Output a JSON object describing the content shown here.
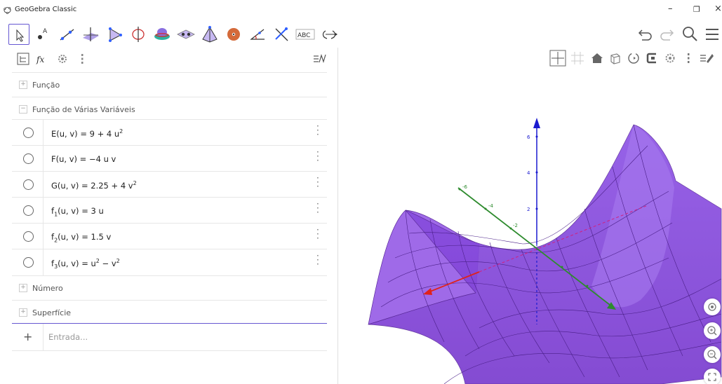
{
  "window": {
    "title": "GeoGebra Classic"
  },
  "toolbar": {
    "tools": [
      "move",
      "point",
      "line",
      "perpendicular",
      "polygon",
      "circle-axis",
      "intersect",
      "plane",
      "pyramid",
      "sphere",
      "angle",
      "reflect",
      "text",
      "rotate-view"
    ],
    "text_tool_label": "ABC"
  },
  "algebra": {
    "categories": {
      "funcao": "Função",
      "funcao_varias": "Função de Várias Variáveis",
      "numero": "Número",
      "superficie": "Superfície"
    },
    "rows": [
      {
        "name": "E",
        "args": "(u, v)",
        "eq": "=",
        "rhs": "9 + 4 u",
        "sup": "2",
        "sub": ""
      },
      {
        "name": "F",
        "args": "(u, v)",
        "eq": "=",
        "rhs": "−4 u v",
        "sup": "",
        "sub": ""
      },
      {
        "name": "G",
        "args": "(u, v)",
        "eq": "=",
        "rhs": "2.25 + 4 v",
        "sup": "2",
        "sub": ""
      },
      {
        "name": "f",
        "args": "(u, v)",
        "eq": "=",
        "rhs": "3 u",
        "sup": "",
        "sub": "1"
      },
      {
        "name": "f",
        "args": "(u, v)",
        "eq": "=",
        "rhs": "1.5 v",
        "sup": "",
        "sub": "2"
      },
      {
        "name": "f",
        "args": "(u, v)",
        "eq": "=",
        "rhs": "u",
        "sup": "2",
        "sub": "3",
        "rhs2": " − v",
        "sup2": "2"
      }
    ],
    "input_placeholder": "Entrada..."
  },
  "graphics": {
    "z_ticks": [
      "6",
      "4",
      "2"
    ],
    "y_ticks": [
      "-6",
      "-4",
      "-2"
    ],
    "surface_color": "#8a4fd9",
    "axis_colors": {
      "x": "#e0221a",
      "y": "#2e8b2e",
      "z": "#1a1ad0"
    }
  }
}
